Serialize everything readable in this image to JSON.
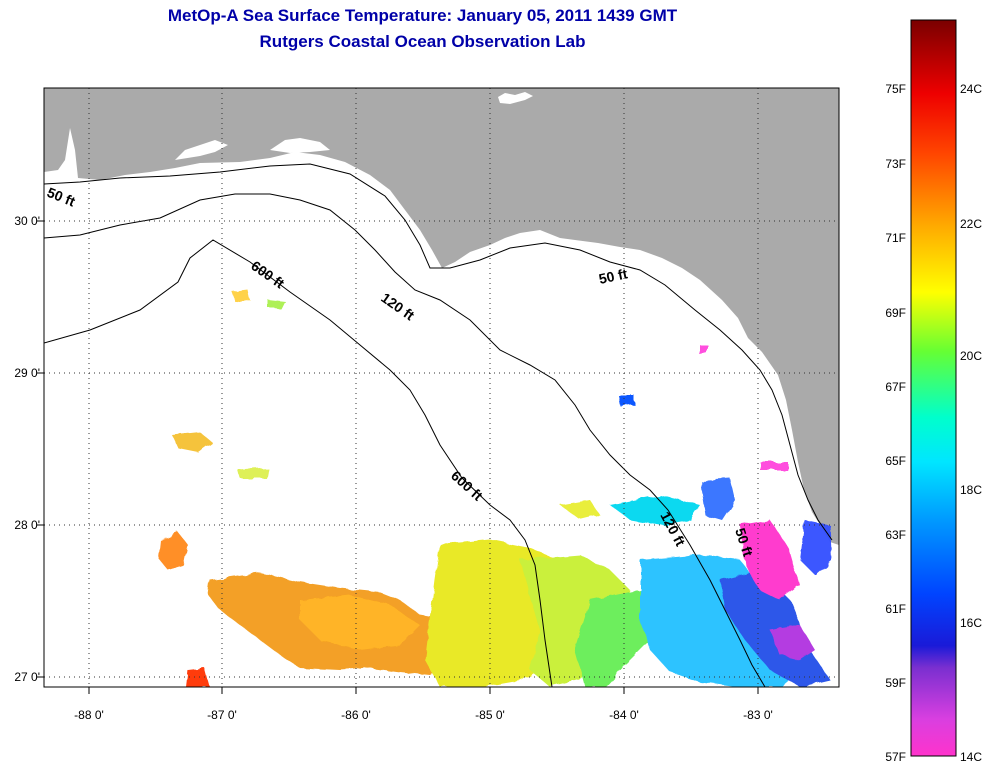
{
  "title": "MetOp-A Sea Surface Temperature:  January 05, 2011 1439 GMT",
  "subtitle": "Rutgers Coastal Ocean Observation Lab",
  "lat_labels": [
    "30 0'",
    "29 0'",
    "28 0'",
    "27 0'"
  ],
  "lon_labels": [
    "-88 0'",
    "-87 0'",
    "-86 0'",
    "-85 0'",
    "-84 0'",
    "-83 0'"
  ],
  "contour_labels": {
    "c50_west": "50 ft",
    "c50_east": "50 ft",
    "c50_south": "50 ft",
    "c120_north": "120 ft",
    "c120_south": "120 ft",
    "c600_north": "600 ft",
    "c600_south": "600 ft"
  },
  "colorbar": {
    "fahrenheit": [
      "75F",
      "73F",
      "71F",
      "69F",
      "67F",
      "65F",
      "63F",
      "61F",
      "59F",
      "57F"
    ],
    "celsius": [
      "24C",
      "22C",
      "20C",
      "18C",
      "16C",
      "14C"
    ]
  },
  "colors": {
    "land": "#aaaaaa",
    "water": "#ffffff",
    "title": "#0000a8"
  }
}
